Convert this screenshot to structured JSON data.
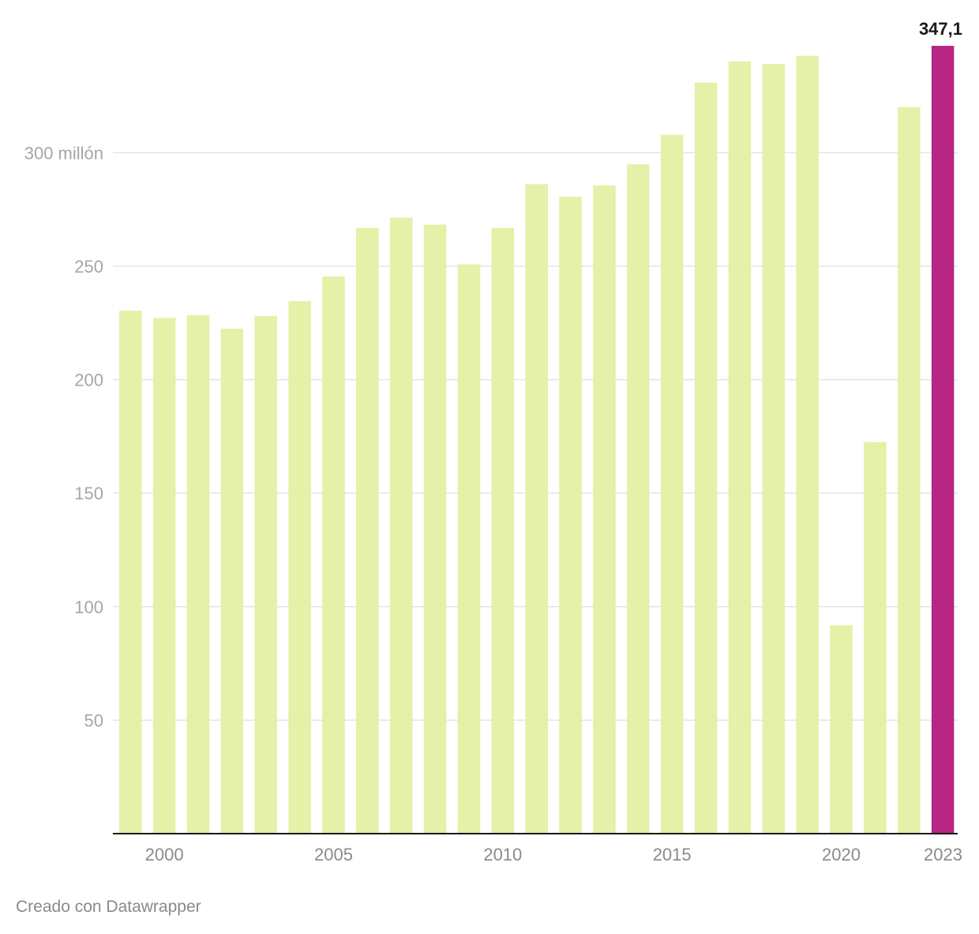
{
  "chart_data": {
    "type": "bar",
    "categories": [
      "1999",
      "2000",
      "2001",
      "2002",
      "2003",
      "2004",
      "2005",
      "2006",
      "2007",
      "2008",
      "2009",
      "2010",
      "2011",
      "2012",
      "2013",
      "2014",
      "2015",
      "2016",
      "2017",
      "2018",
      "2019",
      "2020",
      "2021",
      "2022",
      "2023"
    ],
    "values": [
      230.4,
      227.2,
      228.4,
      222.5,
      228.1,
      234.6,
      245.5,
      266.9,
      271.4,
      268.3,
      250.8,
      266.9,
      286.1,
      280.6,
      285.6,
      294.9,
      307.9,
      330.9,
      340.2,
      339.1,
      342.7,
      91.8,
      172.5,
      320.1,
      347.1
    ],
    "highlight_category": "2023",
    "highlight_label": "347,1",
    "y_ticks": [
      50,
      100,
      150,
      200,
      250,
      300
    ],
    "y_tick_labels": [
      "50",
      "100",
      "150",
      "200",
      "250",
      "300 millón"
    ],
    "x_tick_years": [
      "2000",
      "2005",
      "2010",
      "2015",
      "2020",
      "2023"
    ],
    "ylim": [
      0,
      347.1
    ],
    "title": "",
    "xlabel": "",
    "ylabel": "",
    "grid": true
  },
  "colors": {
    "bar": "#e5f0a8",
    "highlight": "#b72585",
    "grid": "#e4e4e4",
    "axis": "#1a1a1a"
  },
  "footer": {
    "credit": "Creado con Datawrapper"
  }
}
